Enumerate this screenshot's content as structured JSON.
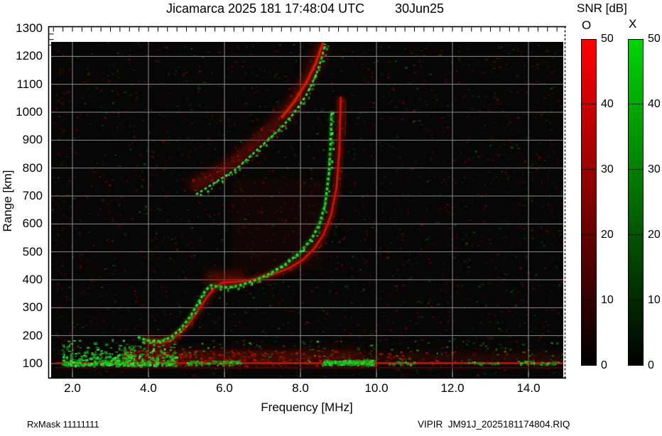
{
  "header": {
    "title": "Jicamarca 2025 181 17:48:04 UTC",
    "date": "30Jun25"
  },
  "footer": {
    "left": "RxMask 11111111",
    "right": "VIPIR  JM91J_2025181174804.RIQ"
  },
  "colorbar": {
    "title": "SNR [dB]",
    "min": 0,
    "max": 50,
    "ticks": [
      0,
      10,
      20,
      30,
      40,
      50
    ],
    "bars": [
      {
        "name": "O",
        "top_color": "#ff0000",
        "bottom_color": "#000000"
      },
      {
        "name": "X",
        "top_color": "#00d400",
        "bottom_color": "#000000"
      }
    ]
  },
  "chart_data": {
    "type": "heatmap",
    "title": "Jicamarca 2025 181 17:48:04 UTC 30Jun25",
    "xlabel": "Frequency [MHz]",
    "ylabel": "Range [km]",
    "xlim": [
      1.4,
      15.0
    ],
    "ylim": [
      45,
      1300
    ],
    "data_area_top_km": 1250,
    "grid": true,
    "grid_color": "#8a8a8a",
    "background": "#060606",
    "x_tick_values": [
      2,
      4,
      6,
      8,
      10,
      12,
      14
    ],
    "x_tick_labels": [
      "2.0",
      "4.0",
      "6.0",
      "8.0",
      "10.0",
      "12.0",
      "14.0"
    ],
    "x_minor_tick_step": 0.25,
    "y_tick_values": [
      100,
      200,
      300,
      400,
      500,
      600,
      700,
      800,
      900,
      1000,
      1100,
      1200,
      1300
    ],
    "legend": {
      "O_mode_color": "#d01400",
      "X_mode_color": "#2fd42f"
    },
    "series": [
      {
        "name": "F-layer O-mode trace",
        "mode": "O",
        "kind": "main",
        "points": [
          [
            3.9,
            185
          ],
          [
            4.1,
            177
          ],
          [
            4.3,
            174
          ],
          [
            4.55,
            180
          ],
          [
            4.8,
            205
          ],
          [
            5.05,
            240
          ],
          [
            5.3,
            288
          ],
          [
            5.55,
            340
          ],
          [
            5.75,
            372
          ],
          [
            5.95,
            390
          ],
          [
            6.2,
            392
          ],
          [
            6.5,
            395
          ],
          [
            6.9,
            405
          ],
          [
            7.3,
            420
          ],
          [
            7.7,
            442
          ],
          [
            8.05,
            470
          ],
          [
            8.35,
            510
          ],
          [
            8.6,
            560
          ],
          [
            8.8,
            630
          ],
          [
            8.95,
            730
          ],
          [
            9.02,
            860
          ],
          [
            9.05,
            1000
          ],
          [
            9.06,
            1055
          ]
        ]
      },
      {
        "name": "F-layer X-mode trace",
        "mode": "X",
        "kind": "main",
        "points": [
          [
            3.72,
            195
          ],
          [
            3.9,
            186
          ],
          [
            4.1,
            180
          ],
          [
            4.35,
            180
          ],
          [
            4.6,
            195
          ],
          [
            4.85,
            225
          ],
          [
            5.1,
            268
          ],
          [
            5.3,
            315
          ],
          [
            5.5,
            362
          ],
          [
            5.65,
            380
          ],
          [
            5.85,
            375
          ],
          [
            6.1,
            372
          ],
          [
            6.4,
            380
          ],
          [
            6.8,
            398
          ],
          [
            7.2,
            422
          ],
          [
            7.6,
            455
          ],
          [
            8.0,
            500
          ],
          [
            8.3,
            548
          ],
          [
            8.5,
            600
          ],
          [
            8.65,
            670
          ],
          [
            8.75,
            780
          ],
          [
            8.8,
            900
          ],
          [
            8.82,
            1005
          ]
        ]
      },
      {
        "name": "second-hop O-mode diffuse band",
        "mode": "O",
        "kind": "diffuse",
        "points": [
          [
            5.1,
            730
          ],
          [
            5.5,
            760
          ],
          [
            5.9,
            790
          ],
          [
            6.3,
            825
          ],
          [
            6.7,
            875
          ],
          [
            7.1,
            925
          ],
          [
            7.5,
            980
          ],
          [
            7.85,
            1040
          ],
          [
            8.15,
            1105
          ],
          [
            8.4,
            1175
          ],
          [
            8.6,
            1250
          ]
        ]
      },
      {
        "name": "second-hop X-mode trace",
        "mode": "X",
        "kind": "speckle",
        "points": [
          [
            5.25,
            705
          ],
          [
            5.6,
            735
          ],
          [
            5.95,
            765
          ],
          [
            6.3,
            795
          ],
          [
            6.7,
            845
          ],
          [
            7.1,
            895
          ],
          [
            7.5,
            945
          ],
          [
            7.85,
            1000
          ],
          [
            8.15,
            1060
          ],
          [
            8.4,
            1130
          ],
          [
            8.55,
            1190
          ],
          [
            8.65,
            1245
          ]
        ]
      },
      {
        "name": "O-mode asymptote echo",
        "mode": "O",
        "kind": "faint",
        "points": [
          [
            9.17,
            915
          ],
          [
            9.19,
            1045
          ]
        ]
      },
      {
        "name": "E-layer 100 km line",
        "mode": "O",
        "kind": "bright-line",
        "points": [
          [
            1.55,
            102
          ],
          [
            15.0,
            102
          ]
        ]
      },
      {
        "name": "E-layer 85 km line",
        "mode": "O",
        "kind": "dim-line",
        "points": [
          [
            1.55,
            85
          ],
          [
            15.0,
            85
          ]
        ]
      }
    ],
    "regions": [
      {
        "name": "E-layer red band strong",
        "f": [
          3.3,
          9.6
        ],
        "km": [
          95,
          148
        ],
        "color": "#7a1000",
        "opacity": 0.5
      },
      {
        "name": "E-layer red band weak",
        "f": [
          9.6,
          15.0
        ],
        "km": [
          95,
          135
        ],
        "color": "#7a1000",
        "opacity": 0.3
      },
      {
        "name": "F-trace onset haze",
        "f": [
          3.95,
          4.55
        ],
        "km": [
          110,
          190
        ],
        "color": "#7a1000",
        "opacity": 0.4
      },
      {
        "name": "plateau red blob",
        "f": [
          5.5,
          6.5
        ],
        "km": [
          385,
          430
        ],
        "color": "#8c1000",
        "opacity": 0.5
      },
      {
        "name": "mid-range red haze",
        "f": [
          6.2,
          8.6
        ],
        "km": [
          430,
          760
        ],
        "color": "#601000",
        "opacity": 0.13
      }
    ],
    "green_E_cloud": {
      "f": [
        1.7,
        4.7
      ],
      "km": [
        95,
        195
      ]
    },
    "green_E_patches": [
      {
        "f": [
          5.0,
          6.4
        ],
        "km": [
          96,
          112
        ],
        "density": 85,
        "bright": 0.8
      },
      {
        "f": [
          8.55,
          9.95
        ],
        "km": [
          96,
          116
        ],
        "density": 150,
        "bright": 1.0,
        "solid": true
      },
      {
        "f": [
          10.3,
          11.0
        ],
        "km": [
          97,
          110
        ],
        "density": 26,
        "bright": 0.5
      },
      {
        "f": [
          12.4,
          13.2
        ],
        "km": [
          97,
          110
        ],
        "density": 24,
        "bright": 0.5
      },
      {
        "f": [
          13.7,
          14.9
        ],
        "km": [
          97,
          112
        ],
        "density": 42,
        "bright": 0.6
      }
    ]
  }
}
